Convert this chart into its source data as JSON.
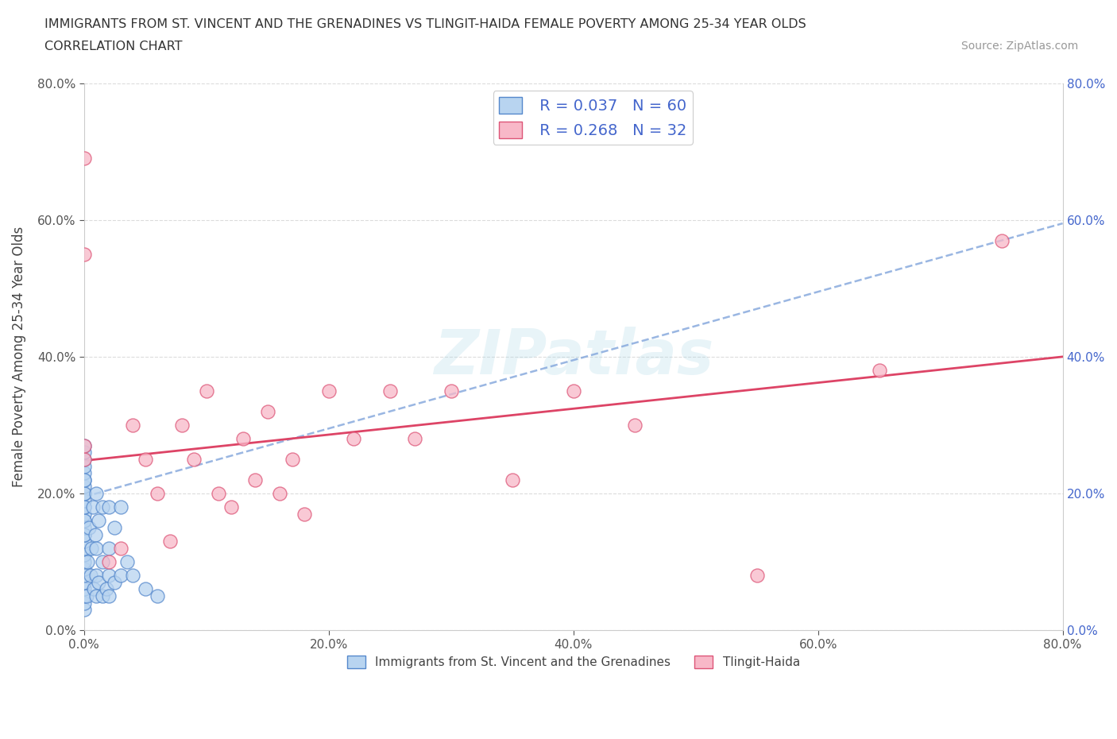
{
  "title_line1": "IMMIGRANTS FROM ST. VINCENT AND THE GRENADINES VS TLINGIT-HAIDA FEMALE POVERTY AMONG 25-34 YEAR OLDS",
  "title_line2": "CORRELATION CHART",
  "source": "Source: ZipAtlas.com",
  "ylabel": "Female Poverty Among 25-34 Year Olds",
  "xlim": [
    0.0,
    0.8
  ],
  "ylim": [
    0.0,
    0.8
  ],
  "xticks": [
    0.0,
    0.2,
    0.4,
    0.6,
    0.8
  ],
  "yticks": [
    0.0,
    0.2,
    0.4,
    0.6,
    0.8
  ],
  "legend1_label": "Immigrants from St. Vincent and the Grenadines",
  "legend2_label": "Tlingit-Haida",
  "R1": 0.037,
  "N1": 60,
  "R2": 0.268,
  "N2": 32,
  "blue_face": "#b8d4f0",
  "blue_edge": "#5588cc",
  "pink_face": "#f8b8c8",
  "pink_edge": "#dd5577",
  "blue_line": "#88aadd",
  "pink_line": "#dd4466",
  "right_label_color": "#4466cc",
  "blue_x": [
    0.0,
    0.0,
    0.0,
    0.0,
    0.0,
    0.0,
    0.0,
    0.0,
    0.0,
    0.0,
    0.0,
    0.0,
    0.0,
    0.0,
    0.0,
    0.0,
    0.0,
    0.0,
    0.0,
    0.0,
    0.0,
    0.0,
    0.0,
    0.0,
    0.0,
    0.0,
    0.0,
    0.0,
    0.0,
    0.0,
    0.002,
    0.003,
    0.004,
    0.005,
    0.006,
    0.007,
    0.008,
    0.009,
    0.01,
    0.01,
    0.01,
    0.01,
    0.012,
    0.012,
    0.015,
    0.015,
    0.015,
    0.018,
    0.02,
    0.02,
    0.02,
    0.02,
    0.025,
    0.025,
    0.03,
    0.03,
    0.035,
    0.04,
    0.05,
    0.06
  ],
  "blue_y": [
    0.03,
    0.04,
    0.05,
    0.06,
    0.07,
    0.08,
    0.09,
    0.1,
    0.11,
    0.12,
    0.13,
    0.14,
    0.15,
    0.16,
    0.17,
    0.18,
    0.19,
    0.2,
    0.21,
    0.22,
    0.23,
    0.24,
    0.25,
    0.26,
    0.27,
    0.14,
    0.16,
    0.18,
    0.2,
    0.22,
    0.05,
    0.1,
    0.15,
    0.08,
    0.12,
    0.18,
    0.06,
    0.14,
    0.05,
    0.08,
    0.12,
    0.2,
    0.07,
    0.16,
    0.05,
    0.1,
    0.18,
    0.06,
    0.05,
    0.08,
    0.12,
    0.18,
    0.07,
    0.15,
    0.08,
    0.18,
    0.1,
    0.08,
    0.06,
    0.05
  ],
  "pink_x": [
    0.0,
    0.0,
    0.0,
    0.0,
    0.02,
    0.03,
    0.04,
    0.05,
    0.06,
    0.07,
    0.08,
    0.09,
    0.1,
    0.11,
    0.12,
    0.13,
    0.14,
    0.15,
    0.16,
    0.17,
    0.18,
    0.2,
    0.22,
    0.25,
    0.27,
    0.3,
    0.35,
    0.4,
    0.45,
    0.55,
    0.65,
    0.75
  ],
  "pink_y": [
    0.69,
    0.55,
    0.25,
    0.27,
    0.1,
    0.12,
    0.3,
    0.25,
    0.2,
    0.13,
    0.3,
    0.25,
    0.35,
    0.2,
    0.18,
    0.28,
    0.22,
    0.32,
    0.2,
    0.25,
    0.17,
    0.35,
    0.28,
    0.35,
    0.28,
    0.35,
    0.22,
    0.35,
    0.3,
    0.08,
    0.38,
    0.57
  ]
}
